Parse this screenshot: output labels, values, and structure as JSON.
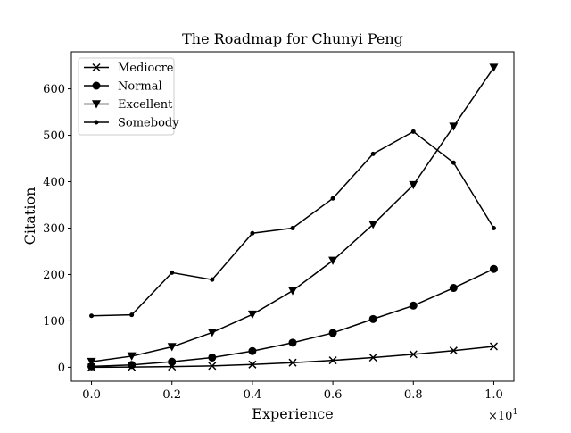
{
  "chart_data": {
    "type": "line",
    "title": "The Roadmap for Chunyi Peng",
    "xlabel": "Experience",
    "ylabel": "Citation",
    "x_offset_label": "×10",
    "x_offset_exp": "1",
    "x": [
      0.0,
      0.1,
      0.2,
      0.3,
      0.4,
      0.5,
      0.6,
      0.7,
      0.8,
      0.9,
      1.0
    ],
    "xlim": [
      -0.05,
      1.05
    ],
    "ylim": [
      -30,
      680
    ],
    "xticks": [
      0.0,
      0.2,
      0.4,
      0.6,
      0.8,
      1.0
    ],
    "xtick_labels": [
      "0.0",
      "0.2",
      "0.4",
      "0.6",
      "0.8",
      "1.0"
    ],
    "yticks": [
      0,
      100,
      200,
      300,
      400,
      500,
      600
    ],
    "ytick_labels": [
      "0",
      "100",
      "200",
      "300",
      "400",
      "500",
      "600"
    ],
    "grid": false,
    "legend_position": "top-left",
    "line_color": "#000000",
    "series": [
      {
        "name": "Mediocre",
        "marker": "x",
        "values": [
          0,
          0.5,
          1.5,
          3,
          6,
          10,
          15,
          21,
          28,
          36,
          45
        ]
      },
      {
        "name": "Normal",
        "marker": "circle",
        "values": [
          2,
          5,
          12,
          21,
          35,
          53,
          74,
          104,
          133,
          171,
          212
        ]
      },
      {
        "name": "Excellent",
        "marker": "triangle-down",
        "values": [
          12,
          24,
          44,
          75,
          114,
          165,
          230,
          308,
          393,
          519,
          646
        ]
      },
      {
        "name": "Somebody",
        "marker": "point",
        "values": [
          111,
          113,
          204,
          189,
          289,
          300,
          364,
          460,
          508,
          441,
          300
        ]
      }
    ]
  }
}
